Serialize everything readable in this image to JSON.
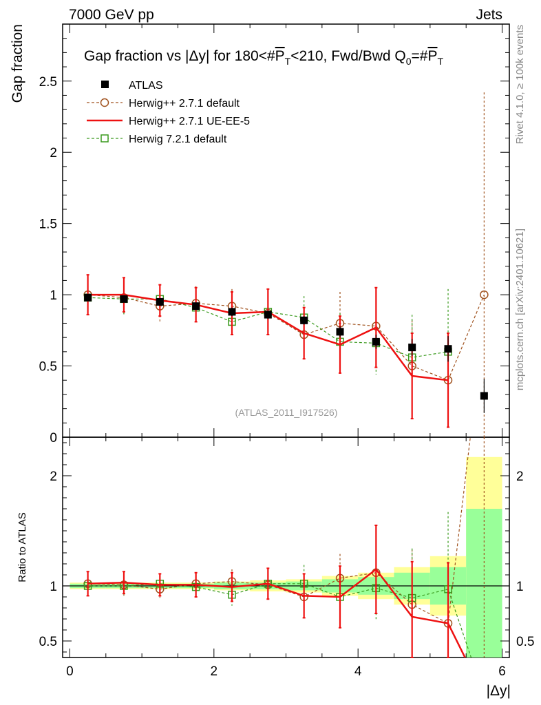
{
  "header": {
    "energy_label": "7000 GeV pp",
    "category_label": "Jets",
    "reference": "(ATLAS_2011_I917526)",
    "side_text_top": "Rivet 4.1.0, ≥ 100k events",
    "side_text_bottom": "mcplots.cern.ch [arXiv:2401.10621]"
  },
  "colors": {
    "data": "#000000",
    "herwigpp_default": "#a0521e",
    "herwigpp_ueee5": "#ee1111",
    "herwig721": "#3a9a1e",
    "band_outer": "#ffff99",
    "band_inner": "#99ff99"
  },
  "chart_data": [
    {
      "type": "line",
      "panel": "main",
      "title": "Gap fraction vs |Δy| for 180<#P̅T<210, Fwd/Bwd Q0=#P̅T",
      "title_parts": {
        "pre": "Gap fraction vs |Δy| for 180<#",
        "p1": "P",
        "t1": "T",
        "mid": "<210, Fwd/Bwd Q",
        "q0": "0",
        "eq": "=#",
        "p2": "P",
        "t2": "T"
      },
      "xlabel": "|Δy|",
      "ylabel": "Gap fraction",
      "xlim": [
        -0.1,
        6.1
      ],
      "ylim": [
        0,
        2.9
      ],
      "yticks": [
        0,
        0.5,
        1,
        1.5,
        2,
        2.5
      ],
      "ytick_labels": [
        "0",
        "0.5",
        "1",
        "1.5",
        "2",
        "2.5"
      ],
      "x": [
        0.25,
        0.75,
        1.25,
        1.75,
        2.25,
        2.75,
        3.25,
        3.75,
        4.25,
        4.75,
        5.25,
        5.75
      ],
      "series": [
        {
          "name": "ATLAS",
          "key": "data",
          "marker": "filled-square",
          "values": [
            0.98,
            0.97,
            0.95,
            0.92,
            0.88,
            0.86,
            0.82,
            0.74,
            0.67,
            0.63,
            0.62,
            0.29
          ],
          "err": [
            0.02,
            0.02,
            0.02,
            0.02,
            0.03,
            0.03,
            0.03,
            0.04,
            0.05,
            0.06,
            0.09,
            0.12
          ]
        },
        {
          "name": "Herwig++ 2.7.1 default",
          "key": "herwigpp_default",
          "marker": "open-circle",
          "values": [
            1.0,
            0.98,
            0.92,
            0.94,
            0.92,
            0.87,
            0.72,
            0.8,
            0.78,
            0.5,
            0.4,
            1.0
          ],
          "err": [
            0.14,
            0.13,
            0.11,
            0.12,
            0.12,
            0.12,
            0.15,
            0.22,
            0.27,
            0.32,
            0.3,
            1.42
          ]
        },
        {
          "name": "Herwig++ 2.7.1 UE-EE-5",
          "key": "herwigpp_ueee5",
          "marker": "line",
          "values": [
            1.0,
            1.0,
            0.96,
            0.93,
            0.87,
            0.88,
            0.73,
            0.65,
            0.77,
            0.43,
            0.4,
            null
          ],
          "err": [
            0.14,
            0.12,
            0.11,
            0.12,
            0.15,
            0.16,
            0.18,
            0.2,
            0.28,
            0.3,
            0.33,
            null
          ]
        },
        {
          "name": "Herwig 7.2.1 default",
          "key": "herwig721",
          "marker": "open-square",
          "values": [
            0.98,
            0.97,
            0.97,
            0.91,
            0.81,
            0.88,
            0.84,
            0.67,
            0.66,
            0.56,
            0.6,
            null
          ],
          "err": [
            0.12,
            0.11,
            0.1,
            0.1,
            0.1,
            0.11,
            0.15,
            0.2,
            0.22,
            0.3,
            0.44,
            null
          ]
        }
      ]
    },
    {
      "type": "line",
      "panel": "ratio",
      "xlabel": "|Δy|",
      "ylabel": "Ratio to ATLAS",
      "xlim": [
        -0.1,
        6.1
      ],
      "ylim": [
        0.35,
        2.35
      ],
      "yticks": [
        0.5,
        1,
        2
      ],
      "ytick_labels": [
        "0.5",
        "1",
        "2"
      ],
      "xticks": [
        0,
        2,
        4,
        6
      ],
      "xtick_labels": [
        "0",
        "2",
        "4",
        "6"
      ],
      "bands": {
        "x_edges": [
          0.0,
          0.5,
          1.0,
          1.5,
          2.0,
          2.5,
          3.0,
          3.5,
          4.0,
          4.5,
          5.0,
          5.5,
          6.0
        ],
        "outer": [
          0.03,
          0.03,
          0.03,
          0.03,
          0.04,
          0.05,
          0.06,
          0.09,
          0.12,
          0.17,
          0.27,
          1.17
        ],
        "inner": [
          0.02,
          0.02,
          0.02,
          0.02,
          0.03,
          0.03,
          0.04,
          0.06,
          0.08,
          0.12,
          0.17,
          0.7
        ]
      },
      "series": [
        {
          "name": "Herwig++ 2.7.1 default",
          "key": "herwigpp_default",
          "marker": "open-circle",
          "values": [
            1.02,
            1.01,
            0.97,
            1.02,
            1.04,
            1.01,
            0.9,
            1.07,
            1.12,
            0.83,
            0.66,
            3.4
          ],
          "err": [
            0.11,
            0.1,
            0.09,
            0.1,
            0.11,
            0.12,
            0.17,
            0.22,
            0.3,
            0.5,
            0.5,
            5.0
          ]
        },
        {
          "name": "Herwig++ 2.7.1 UE-EE-5",
          "key": "herwigpp_ueee5",
          "marker": "line",
          "values": [
            1.02,
            1.03,
            1.01,
            1.01,
            0.99,
            1.02,
            0.91,
            0.9,
            1.15,
            0.72,
            0.66,
            0.0
          ],
          "err": [
            0.11,
            0.1,
            0.1,
            0.11,
            0.13,
            0.14,
            0.2,
            0.28,
            0.4,
            0.5,
            0.55,
            null
          ]
        },
        {
          "name": "Herwig 7.2.1 default",
          "key": "herwig721",
          "marker": "open-square",
          "values": [
            1.0,
            1.0,
            1.02,
            0.99,
            0.92,
            1.02,
            1.02,
            0.9,
            0.98,
            0.89,
            0.97,
            0.0
          ],
          "err": [
            0.09,
            0.09,
            0.09,
            0.09,
            0.1,
            0.11,
            0.17,
            0.26,
            0.3,
            0.45,
            0.7,
            null
          ]
        }
      ]
    }
  ]
}
